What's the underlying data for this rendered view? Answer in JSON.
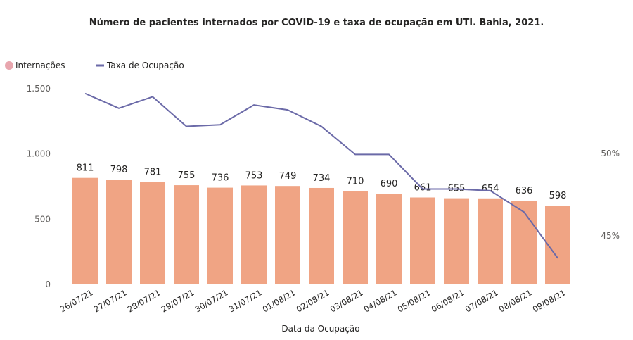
{
  "chart_data": {
    "type": "bar",
    "title": "Número de pacientes internados  por COVID-19 e taxa de ocupação em UTI. Bahia, 2021.",
    "xlabel": "Data da Ocupação",
    "ylabel": "",
    "y2label": "",
    "legend": {
      "placement": "top-left",
      "entries": [
        {
          "name": "Internações",
          "marker": "circle"
        },
        {
          "name": "Taxa de Ocupação",
          "marker": "line"
        }
      ]
    },
    "categories": [
      "26/07/21",
      "27/07/21",
      "28/07/21",
      "29/07/21",
      "30/07/21",
      "31/07/21",
      "01/08/21",
      "02/08/21",
      "03/08/21",
      "04/08/21",
      "05/08/21",
      "06/08/21",
      "07/08/21",
      "08/08/21",
      "09/08/21"
    ],
    "series": [
      {
        "name": "Internações",
        "type": "bar",
        "axis": "left",
        "color": "#f0a484",
        "values": [
          811,
          798,
          781,
          755,
          736,
          753,
          749,
          734,
          710,
          690,
          661,
          655,
          654,
          636,
          598
        ],
        "labels": [
          "811",
          "798",
          "781",
          "755",
          "736",
          "753",
          "749",
          "734",
          "710",
          "690",
          "661",
          "655",
          "654",
          "636",
          "598"
        ]
      },
      {
        "name": "Taxa de Ocupação",
        "type": "line",
        "axis": "right",
        "color": "#6b6aa8",
        "unit": "%",
        "values": [
          53.6,
          52.7,
          53.4,
          51.6,
          51.7,
          52.9,
          52.6,
          51.6,
          49.9,
          49.9,
          47.8,
          47.8,
          47.7,
          46.4,
          43.6
        ]
      }
    ],
    "ylim": [
      0,
      1500
    ],
    "yticks": [
      0,
      500,
      1000,
      1500
    ],
    "ytick_labels": [
      "0",
      "500",
      "1.000",
      "1.500"
    ],
    "y2ticks": [
      45,
      50
    ],
    "y2tick_labels": [
      "45%",
      "50%"
    ],
    "grid": false,
    "legend_colors": {
      "bar_marker": "#e8a6ae",
      "line_marker": "#6b6aa8"
    }
  }
}
